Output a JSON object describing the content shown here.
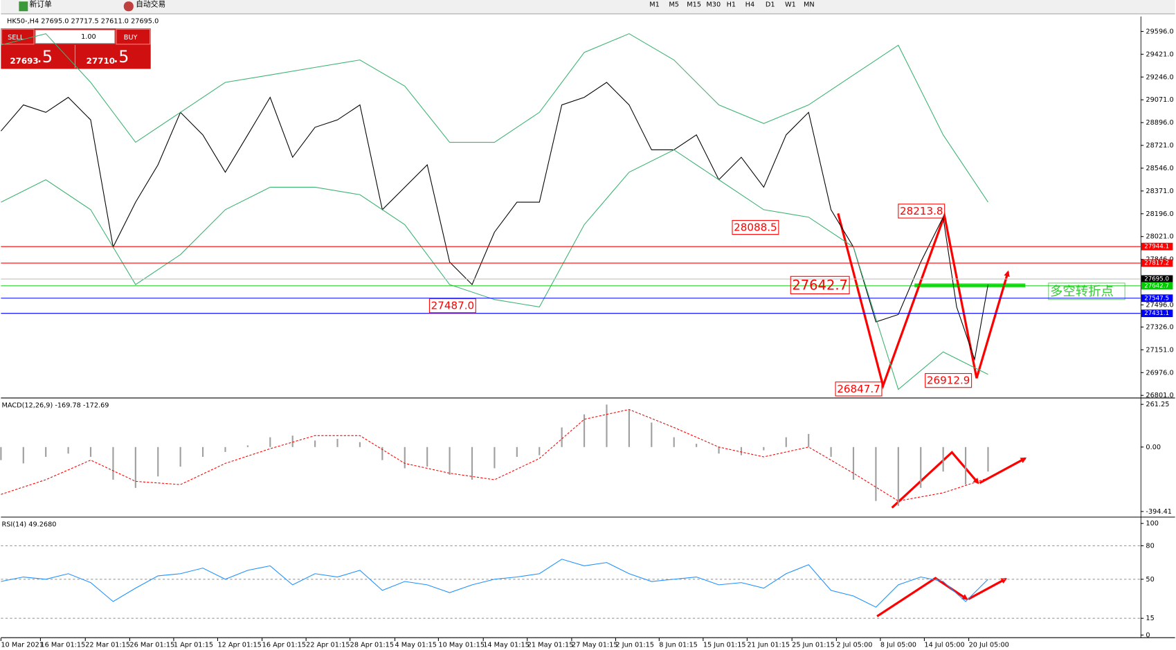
{
  "toolbar": {
    "order_button": "新订单",
    "auto_trading": "自动交易",
    "timeframes": [
      "M1",
      "M5",
      "M15",
      "M30",
      "H1",
      "H4",
      "D1",
      "W1",
      "MN"
    ]
  },
  "trade_panel": {
    "sell": "SELL",
    "volume": "1.00",
    "buy": "BUY",
    "bid": "27693",
    "bid_big": ".5",
    "ask": "27710",
    "ask_big": ".5"
  },
  "chart_data": [
    {
      "type": "line",
      "title": "HK50-,H4  27695.0 27717.5 27611.0 27695.0",
      "xlim": [
        0,
        254
      ],
      "ylim": [
        26789.5,
        29711
      ],
      "yticks": [
        {
          "value": 29596,
          "label": "29596.0"
        },
        {
          "value": 29421,
          "label": "29421.0"
        },
        {
          "value": 29246,
          "label": "29246.0"
        },
        {
          "value": 29071,
          "label": "29071.0"
        },
        {
          "value": 28896,
          "label": "28896.0"
        },
        {
          "value": 28721,
          "label": "28721.0"
        },
        {
          "value": 28546,
          "label": "28546.0"
        },
        {
          "value": 28371,
          "label": "28371.0"
        },
        {
          "value": 28196,
          "label": "28196.0"
        },
        {
          "value": 28021,
          "label": "28021.0"
        },
        {
          "value": 27846,
          "label": "27846.0"
        },
        {
          "value": 27496,
          "label": "27496.0"
        },
        {
          "value": 27326,
          "label": "27326.0"
        },
        {
          "value": 27151,
          "label": "27151.0"
        },
        {
          "value": 26976,
          "label": "26976.0"
        },
        {
          "value": 26801,
          "label": "26801.0"
        }
      ],
      "series": [
        {
          "color": "#000000",
          "x": [
            0,
            5,
            10,
            15,
            20,
            25,
            30,
            35,
            40,
            45,
            50,
            55,
            60,
            65,
            70,
            75,
            80,
            85,
            90,
            95,
            100,
            105,
            110,
            115,
            120,
            125,
            130,
            135,
            140,
            145,
            150,
            155,
            160,
            165,
            170,
            175,
            180,
            185,
            190,
            195,
            200,
            205,
            210,
            213,
            217,
            220
          ],
          "values": [
            28831,
            29032,
            28975,
            29090,
            28917,
            27940,
            28285,
            28572,
            28975,
            28802,
            28515,
            28802,
            29090,
            28630,
            28860,
            28917,
            29032,
            28227,
            28400,
            28572,
            27825,
            27652,
            28055,
            28285,
            28285,
            29032,
            29090,
            29205,
            29032,
            28687,
            28687,
            28802,
            28457,
            28630,
            28400,
            28802,
            28975,
            28227,
            27940,
            27365,
            27422,
            27825,
            28170,
            27480,
            27077,
            27652
          ]
        },
        {
          "color": "#3cb371",
          "x": [
            0,
            10,
            20,
            30,
            40,
            50,
            60,
            70,
            80,
            90,
            100,
            110,
            120,
            130,
            140,
            150,
            160,
            170,
            180,
            190,
            200,
            210,
            220
          ],
          "values": [
            29492,
            29579,
            29205,
            28745,
            28975,
            29205,
            29262,
            29320,
            29377,
            29176,
            28745,
            28745,
            28975,
            29435,
            29579,
            29377,
            29032,
            28889,
            29032,
            29262,
            29490,
            28802,
            28285
          ]
        },
        {
          "color": "#3cb371",
          "x": [
            0,
            10,
            20,
            30,
            40,
            50,
            60,
            70,
            80,
            90,
            100,
            110,
            120,
            130,
            140,
            150,
            160,
            170,
            180,
            190,
            200,
            210,
            220
          ],
          "values": [
            28285,
            28457,
            28227,
            27652,
            27882,
            28227,
            28400,
            28400,
            28342,
            28112,
            27652,
            27537,
            27480,
            28112,
            28515,
            28687,
            28457,
            28227,
            28170,
            27940,
            26847,
            27135,
            26962
          ]
        }
      ],
      "levels": [
        {
          "value": 27944.1,
          "label": "27944.1",
          "color": "#ff0000"
        },
        {
          "value": 27817.2,
          "label": "27817.2",
          "color": "#ff0000"
        },
        {
          "value": 27695.0,
          "label": "27695.0",
          "color": "#c0c0c0"
        },
        {
          "value": 27642.7,
          "label": "27642.7",
          "color": "#00cc00"
        },
        {
          "value": 27547.5,
          "label": "27547.5",
          "color": "#0000ff"
        },
        {
          "value": 27431.1,
          "label": "27431.1",
          "color": "#0000ff"
        }
      ],
      "annotations": [
        {
          "value": 28213.8,
          "label": "28213.8",
          "x": 200
        },
        {
          "value": 28088.5,
          "label": "28088.5",
          "x": 163
        },
        {
          "value": 27487.0,
          "label": "27487.0",
          "x": 95.5
        },
        {
          "value": 27642.7,
          "label": "27642.7",
          "x": 176
        },
        {
          "value": 26847.7,
          "label": "26847.7",
          "x": 186
        },
        {
          "value": 26912.9,
          "label": "26912.9",
          "x": 206
        }
      ],
      "note": "多空转折点"
    },
    {
      "type": "bar",
      "title": "MACD(12,26,9) -169.78 -172.69",
      "xlim": [
        0,
        254
      ],
      "ylim": [
        -417.3,
        293.3
      ],
      "yticks": [
        261.25,
        {
          "value": 0,
          "label": "0.00"
        },
        -394.41
      ],
      "series": [
        {
          "type": "bar",
          "color": "#a0a0a0",
          "x": [
            0,
            5,
            10,
            15,
            20,
            25,
            30,
            35,
            40,
            45,
            50,
            55,
            60,
            65,
            70,
            75,
            80,
            85,
            90,
            95,
            100,
            105,
            110,
            115,
            120,
            125,
            130,
            135,
            140,
            145,
            150,
            155,
            160,
            165,
            170,
            175,
            180,
            185,
            190,
            195,
            200,
            205,
            210,
            215,
            220
          ],
          "values": [
            -80,
            -100,
            -60,
            -40,
            -60,
            -200,
            -250,
            -180,
            -120,
            -60,
            -30,
            10,
            60,
            70,
            40,
            50,
            30,
            -80,
            -130,
            -120,
            -170,
            -200,
            -130,
            -60,
            -50,
            120,
            200,
            260,
            230,
            150,
            60,
            20,
            -40,
            -50,
            -20,
            60,
            80,
            -60,
            -200,
            -330,
            -360,
            -250,
            -150,
            -230,
            -150
          ]
        },
        {
          "type": "line",
          "color": "#ff0000",
          "x": [
            0,
            10,
            20,
            30,
            40,
            50,
            60,
            70,
            80,
            90,
            100,
            110,
            120,
            130,
            140,
            150,
            160,
            170,
            180,
            190,
            200,
            210,
            220
          ],
          "values": [
            -290,
            -200,
            -80,
            -210,
            -230,
            -100,
            -10,
            70,
            70,
            -100,
            -160,
            -200,
            -70,
            170,
            230,
            120,
            0,
            -60,
            0,
            -160,
            -330,
            -280,
            -190
          ]
        }
      ]
    },
    {
      "type": "line",
      "title": "RSI(14) 49.2680",
      "xlim": [
        0,
        254
      ],
      "ylim": [
        -2,
        104.7
      ],
      "yticks": [
        0,
        15,
        50,
        80,
        100
      ],
      "xticks": [
        {
          "value": 0,
          "label": "10 Mar 2021"
        },
        {
          "value": 8.8,
          "label": "16 Mar 01:15"
        },
        {
          "value": 18.8,
          "label": "22 Mar 01:15"
        },
        {
          "value": 28.7,
          "label": "26 Mar 01:15"
        },
        {
          "value": 38.5,
          "label": "1 Apr 01:15"
        },
        {
          "value": 48.3,
          "label": "12 Apr 01:15"
        },
        {
          "value": 58.2,
          "label": "16 Apr 01:15"
        },
        {
          "value": 68,
          "label": "22 Apr 01:15"
        },
        {
          "value": 77.8,
          "label": "28 Apr 01:15"
        },
        {
          "value": 87.8,
          "label": "4 May 01:15"
        },
        {
          "value": 97.5,
          "label": "10 May 01:15"
        },
        {
          "value": 107.5,
          "label": "14 May 01:15"
        },
        {
          "value": 117.3,
          "label": "21 May 01:15"
        },
        {
          "value": 127.2,
          "label": "27 May 01:15"
        },
        {
          "value": 137,
          "label": "2 Jun 01:15"
        },
        {
          "value": 146.7,
          "label": "8 Jun 01:15"
        },
        {
          "value": 156.5,
          "label": "15 Jun 01:15"
        },
        {
          "value": 166.3,
          "label": "21 Jun 01:15"
        },
        {
          "value": 176.3,
          "label": "25 Jun 01:15"
        },
        {
          "value": 186.2,
          "label": "2 Jul 05:00"
        },
        {
          "value": 196,
          "label": "8 Jul 05:00"
        },
        {
          "value": 205.8,
          "label": "14 Jul 05:00"
        },
        {
          "value": 215.7,
          "label": "20 Jul 05:00"
        }
      ],
      "grid": "dashed",
      "series": [
        {
          "color": "#1e90ff",
          "x": [
            0,
            5,
            10,
            15,
            20,
            25,
            30,
            35,
            40,
            45,
            50,
            55,
            60,
            65,
            70,
            75,
            80,
            85,
            90,
            95,
            100,
            105,
            110,
            115,
            120,
            125,
            130,
            135,
            140,
            145,
            150,
            155,
            160,
            165,
            170,
            175,
            180,
            185,
            190,
            195,
            200,
            205,
            210,
            215,
            220
          ],
          "values": [
            48,
            52,
            50,
            55,
            47,
            30,
            42,
            53,
            55,
            60,
            50,
            58,
            62,
            45,
            55,
            52,
            58,
            40,
            48,
            45,
            38,
            45,
            50,
            52,
            55,
            68,
            62,
            65,
            55,
            48,
            50,
            52,
            45,
            47,
            42,
            55,
            63,
            40,
            35,
            25,
            45,
            52,
            48,
            30,
            50
          ]
        }
      ]
    }
  ]
}
